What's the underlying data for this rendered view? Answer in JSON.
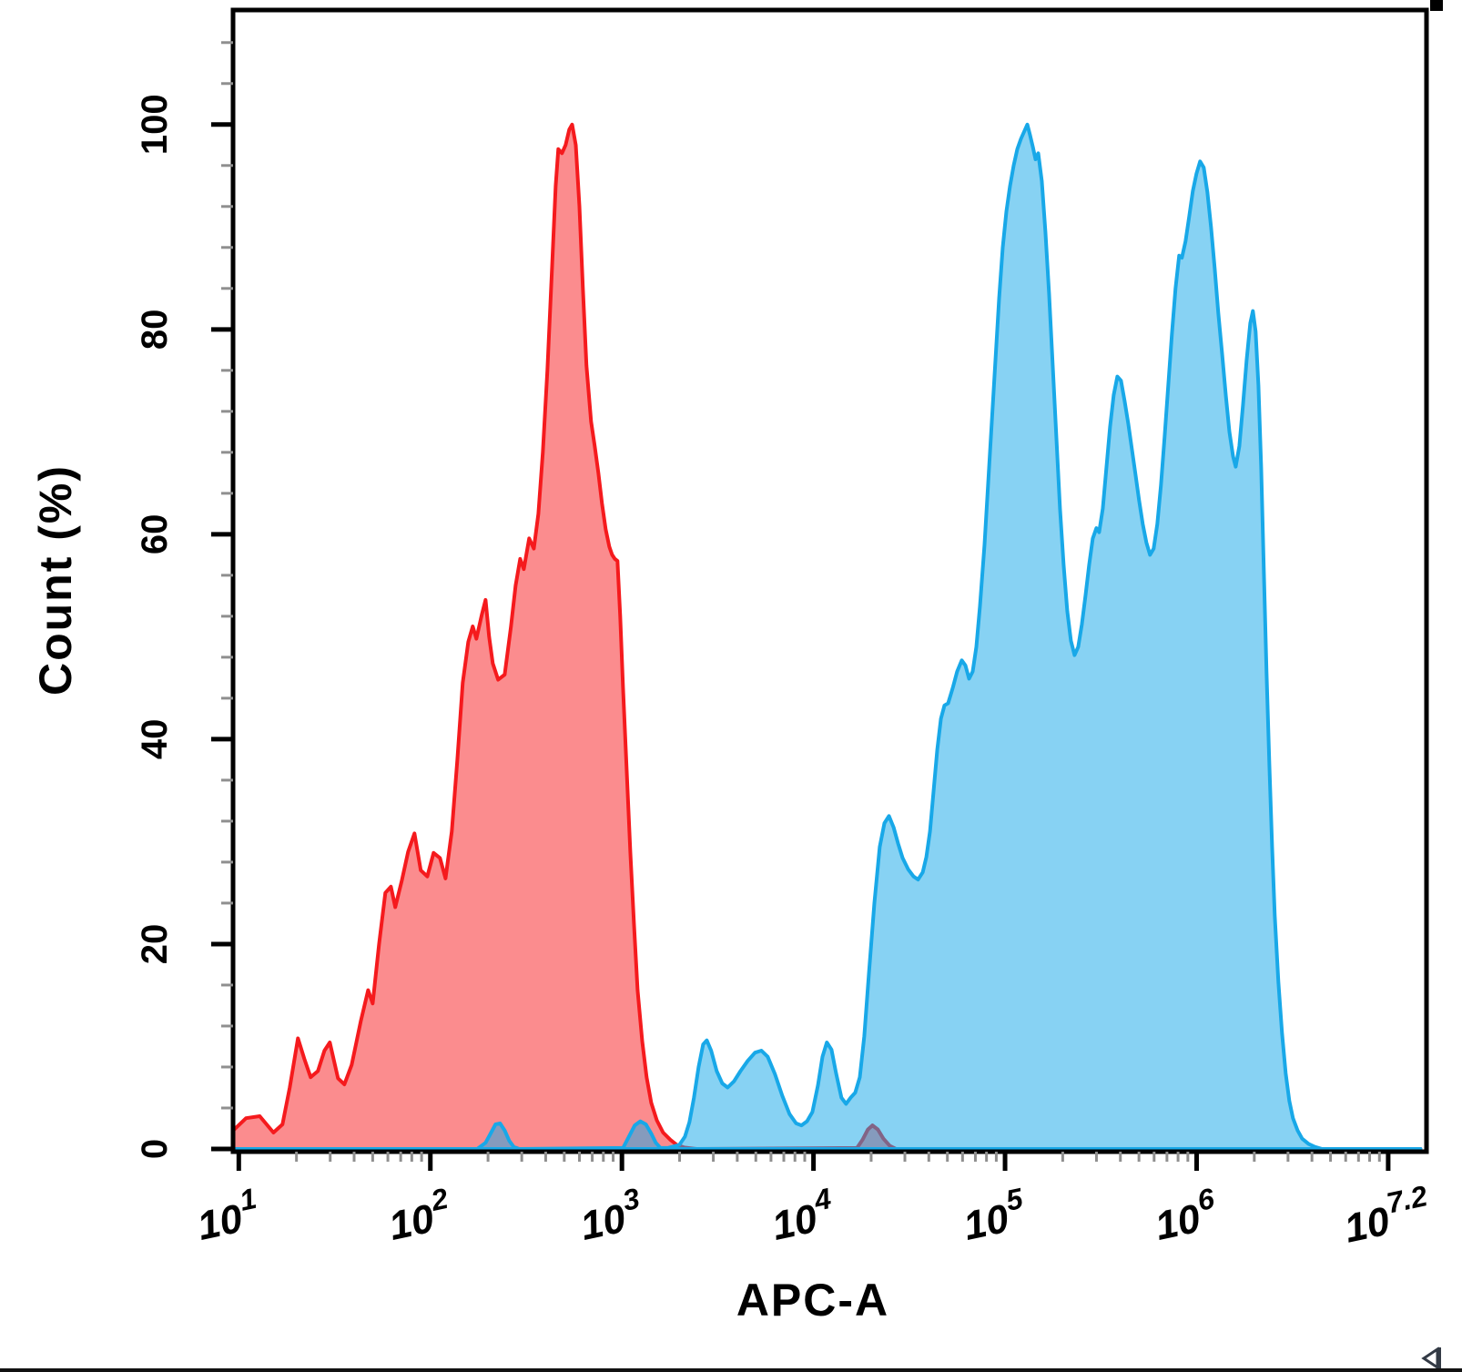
{
  "figure": {
    "ylabel": "Count  (%)",
    "xlabel": "APC-A"
  },
  "chart_data": {
    "type": "area",
    "subtype": "flow-cytometry-histogram",
    "x_scale": "log10",
    "xlabel": "APC-A",
    "ylabel": "Count (%)",
    "grid": false,
    "legend": "none",
    "xlim_log10": [
      0.97,
      7.2
    ],
    "ylim_pct": [
      0,
      111
    ],
    "y_major_ticks": [
      0,
      20,
      40,
      60,
      80,
      100
    ],
    "y_minor_step": 4,
    "y_minor_max": 108,
    "x_major_tick_logs": [
      1,
      2,
      3,
      4,
      5,
      6,
      7
    ],
    "x_tick_labels": [
      {
        "log": 1.0,
        "base": "10",
        "sup": "1"
      },
      {
        "log": 2.0,
        "base": "10",
        "sup": "2"
      },
      {
        "log": 3.0,
        "base": "10",
        "sup": "3"
      },
      {
        "log": 4.0,
        "base": "10",
        "sup": "4"
      },
      {
        "log": 5.0,
        "base": "10",
        "sup": "5"
      },
      {
        "log": 6.0,
        "base": "10",
        "sup": "6"
      },
      {
        "log": 7.05,
        "base": "10",
        "sup": "7.2"
      }
    ],
    "series": [
      {
        "name": "red-population",
        "stroke": "#f51a1d",
        "fill": "rgba(247,26,30,0.5)",
        "stroke_width": 4,
        "points": [
          [
            0.971,
            1.8
          ],
          [
            1.038,
            3.0
          ],
          [
            1.109,
            3.2
          ],
          [
            1.181,
            1.6
          ],
          [
            1.228,
            2.4
          ],
          [
            1.266,
            6.0
          ],
          [
            1.309,
            10.8
          ],
          [
            1.342,
            8.8
          ],
          [
            1.375,
            7.0
          ],
          [
            1.413,
            7.6
          ],
          [
            1.447,
            9.6
          ],
          [
            1.475,
            10.4
          ],
          [
            1.518,
            6.9
          ],
          [
            1.551,
            6.3
          ],
          [
            1.589,
            8.2
          ],
          [
            1.637,
            12.5
          ],
          [
            1.675,
            15.5
          ],
          [
            1.699,
            14.2
          ],
          [
            1.732,
            20.0
          ],
          [
            1.765,
            25.0
          ],
          [
            1.794,
            25.6
          ],
          [
            1.817,
            23.6
          ],
          [
            1.851,
            26.2
          ],
          [
            1.884,
            29.0
          ],
          [
            1.917,
            30.8
          ],
          [
            1.95,
            27.2
          ],
          [
            1.984,
            26.6
          ],
          [
            2.017,
            28.9
          ],
          [
            2.05,
            28.4
          ],
          [
            2.079,
            26.4
          ],
          [
            2.112,
            31.0
          ],
          [
            2.141,
            38.0
          ],
          [
            2.169,
            45.5
          ],
          [
            2.198,
            49.5
          ],
          [
            2.221,
            51.0
          ],
          [
            2.24,
            49.8
          ],
          [
            2.269,
            52.2
          ],
          [
            2.288,
            53.6
          ],
          [
            2.307,
            50.0
          ],
          [
            2.326,
            47.4
          ],
          [
            2.354,
            45.8
          ],
          [
            2.388,
            46.3
          ],
          [
            2.421,
            51.0
          ],
          [
            2.445,
            55.0
          ],
          [
            2.469,
            57.6
          ],
          [
            2.488,
            56.6
          ],
          [
            2.516,
            59.6
          ],
          [
            2.54,
            58.6
          ],
          [
            2.564,
            62.0
          ],
          [
            2.587,
            68.0
          ],
          [
            2.611,
            76.0
          ],
          [
            2.635,
            86.0
          ],
          [
            2.654,
            94.0
          ],
          [
            2.668,
            97.6
          ],
          [
            2.687,
            97.2
          ],
          [
            2.706,
            98.0
          ],
          [
            2.725,
            99.5
          ],
          [
            2.74,
            100.0
          ],
          [
            2.759,
            98.0
          ],
          [
            2.778,
            92.0
          ],
          [
            2.796,
            84.0
          ],
          [
            2.815,
            76.5
          ],
          [
            2.839,
            71.0
          ],
          [
            2.858,
            68.6
          ],
          [
            2.877,
            66.0
          ],
          [
            2.896,
            63.0
          ],
          [
            2.915,
            60.5
          ],
          [
            2.934,
            58.8
          ],
          [
            2.949,
            58.0
          ],
          [
            2.963,
            57.6
          ],
          [
            2.977,
            57.4
          ],
          [
            2.991,
            52.0
          ],
          [
            3.006,
            45.0
          ],
          [
            3.025,
            37.0
          ],
          [
            3.044,
            29.0
          ],
          [
            3.063,
            22.0
          ],
          [
            3.082,
            15.5
          ],
          [
            3.106,
            10.5
          ],
          [
            3.129,
            7.0
          ],
          [
            3.153,
            4.5
          ],
          [
            3.182,
            2.8
          ],
          [
            3.215,
            1.6
          ],
          [
            3.253,
            0.9
          ],
          [
            3.286,
            0.4
          ],
          [
            3.324,
            0.15
          ],
          [
            3.39,
            0
          ],
          [
            4.227,
            0.1
          ],
          [
            4.256,
            0.9
          ],
          [
            4.284,
            1.9
          ],
          [
            4.308,
            2.3
          ],
          [
            4.336,
            1.9
          ],
          [
            4.365,
            1.0
          ],
          [
            4.398,
            0.3
          ],
          [
            4.431,
            0
          ],
          [
            7.169,
            0
          ]
        ]
      },
      {
        "name": "blue-population",
        "stroke": "#18a8e8",
        "fill": "rgba(24,168,232,0.52)",
        "stroke_width": 4,
        "points": [
          [
            0.971,
            0
          ],
          [
            2.245,
            0
          ],
          [
            2.288,
            0.6
          ],
          [
            2.317,
            1.6
          ],
          [
            2.34,
            2.4
          ],
          [
            2.364,
            2.5
          ],
          [
            2.388,
            1.8
          ],
          [
            2.412,
            0.8
          ],
          [
            2.435,
            0.2
          ],
          [
            2.464,
            0
          ],
          [
            3.006,
            0.1
          ],
          [
            3.034,
            1.1
          ],
          [
            3.067,
            2.3
          ],
          [
            3.096,
            2.7
          ],
          [
            3.125,
            2.4
          ],
          [
            3.153,
            1.5
          ],
          [
            3.177,
            0.6
          ],
          [
            3.201,
            0.1
          ],
          [
            3.239,
            0.1
          ],
          [
            3.3,
            0.4
          ],
          [
            3.329,
            1.2
          ],
          [
            3.352,
            2.6
          ],
          [
            3.376,
            5.0
          ],
          [
            3.4,
            8.0
          ],
          [
            3.424,
            10.2
          ],
          [
            3.443,
            10.6
          ],
          [
            3.466,
            9.6
          ],
          [
            3.495,
            7.6
          ],
          [
            3.524,
            6.4
          ],
          [
            3.552,
            6.0
          ],
          [
            3.585,
            6.6
          ],
          [
            3.619,
            7.6
          ],
          [
            3.657,
            8.6
          ],
          [
            3.695,
            9.4
          ],
          [
            3.728,
            9.6
          ],
          [
            3.761,
            9.0
          ],
          [
            3.799,
            7.3
          ],
          [
            3.837,
            5.2
          ],
          [
            3.875,
            3.4
          ],
          [
            3.909,
            2.5
          ],
          [
            3.937,
            2.3
          ],
          [
            3.966,
            2.7
          ],
          [
            3.994,
            3.6
          ],
          [
            4.023,
            6.2
          ],
          [
            4.047,
            9.0
          ],
          [
            4.07,
            10.4
          ],
          [
            4.094,
            9.7
          ],
          [
            4.118,
            7.4
          ],
          [
            4.146,
            5.0
          ],
          [
            4.17,
            4.4
          ],
          [
            4.194,
            5.0
          ],
          [
            4.218,
            5.5
          ],
          [
            4.242,
            7.0
          ],
          [
            4.265,
            11.0
          ],
          [
            4.289,
            17.0
          ],
          [
            4.318,
            24.0
          ],
          [
            4.346,
            29.5
          ],
          [
            4.37,
            31.8
          ],
          [
            4.394,
            32.5
          ],
          [
            4.418,
            31.4
          ],
          [
            4.442,
            29.8
          ],
          [
            4.465,
            28.4
          ],
          [
            4.494,
            27.3
          ],
          [
            4.522,
            26.6
          ],
          [
            4.546,
            26.3
          ],
          [
            4.57,
            27.0
          ],
          [
            4.589,
            28.5
          ],
          [
            4.608,
            31.0
          ],
          [
            4.627,
            35.0
          ],
          [
            4.646,
            39.0
          ],
          [
            4.665,
            42.0
          ],
          [
            4.684,
            43.3
          ],
          [
            4.703,
            43.5
          ],
          [
            4.727,
            45.0
          ],
          [
            4.75,
            46.6
          ],
          [
            4.774,
            47.7
          ],
          [
            4.793,
            47.2
          ],
          [
            4.812,
            45.9
          ],
          [
            4.831,
            46.6
          ],
          [
            4.85,
            49.0
          ],
          [
            4.869,
            53.0
          ],
          [
            4.893,
            59.0
          ],
          [
            4.912,
            65.0
          ],
          [
            4.931,
            71.0
          ],
          [
            4.95,
            77.0
          ],
          [
            4.969,
            83.0
          ],
          [
            4.988,
            88.0
          ],
          [
            5.007,
            91.5
          ],
          [
            5.026,
            94.0
          ],
          [
            5.045,
            96.0
          ],
          [
            5.064,
            97.6
          ],
          [
            5.083,
            98.6
          ],
          [
            5.102,
            99.4
          ],
          [
            5.116,
            100.0
          ],
          [
            5.13,
            99.0
          ],
          [
            5.145,
            97.8
          ],
          [
            5.159,
            96.6
          ],
          [
            5.173,
            97.2
          ],
          [
            5.192,
            94.5
          ],
          [
            5.211,
            89.5
          ],
          [
            5.23,
            83.5
          ],
          [
            5.249,
            76.5
          ],
          [
            5.268,
            69.5
          ],
          [
            5.287,
            62.5
          ],
          [
            5.306,
            57.0
          ],
          [
            5.325,
            52.5
          ],
          [
            5.344,
            49.6
          ],
          [
            5.363,
            48.2
          ],
          [
            5.382,
            49.0
          ],
          [
            5.401,
            51.2
          ],
          [
            5.42,
            54.0
          ],
          [
            5.439,
            57.0
          ],
          [
            5.458,
            59.6
          ],
          [
            5.477,
            60.6
          ],
          [
            5.491,
            60.2
          ],
          [
            5.51,
            62.5
          ],
          [
            5.529,
            66.5
          ],
          [
            5.548,
            70.5
          ],
          [
            5.567,
            73.6
          ],
          [
            5.586,
            75.4
          ],
          [
            5.605,
            75.0
          ],
          [
            5.624,
            73.0
          ],
          [
            5.643,
            70.8
          ],
          [
            5.662,
            68.3
          ],
          [
            5.681,
            65.8
          ],
          [
            5.7,
            63.3
          ],
          [
            5.719,
            61.0
          ],
          [
            5.738,
            59.2
          ],
          [
            5.757,
            58.0
          ],
          [
            5.776,
            58.6
          ],
          [
            5.795,
            61.0
          ],
          [
            5.814,
            64.8
          ],
          [
            5.833,
            69.5
          ],
          [
            5.852,
            74.5
          ],
          [
            5.871,
            79.5
          ],
          [
            5.89,
            84.0
          ],
          [
            5.909,
            87.2
          ],
          [
            5.923,
            87.0
          ],
          [
            5.942,
            88.6
          ],
          [
            5.961,
            91.0
          ],
          [
            5.98,
            93.5
          ],
          [
            5.999,
            95.2
          ],
          [
            6.018,
            96.4
          ],
          [
            6.037,
            95.8
          ],
          [
            6.056,
            93.4
          ],
          [
            6.075,
            90.0
          ],
          [
            6.094,
            86.0
          ],
          [
            6.113,
            81.6
          ],
          [
            6.133,
            77.6
          ],
          [
            6.152,
            73.6
          ],
          [
            6.171,
            70.0
          ],
          [
            6.19,
            67.6
          ],
          [
            6.204,
            66.6
          ],
          [
            6.223,
            68.6
          ],
          [
            6.242,
            72.6
          ],
          [
            6.261,
            77.0
          ],
          [
            6.28,
            80.6
          ],
          [
            6.294,
            81.8
          ],
          [
            6.308,
            79.8
          ],
          [
            6.323,
            74.5
          ],
          [
            6.337,
            66.5
          ],
          [
            6.351,
            56.5
          ],
          [
            6.365,
            46.5
          ],
          [
            6.38,
            37.5
          ],
          [
            6.394,
            29.5
          ],
          [
            6.408,
            22.8
          ],
          [
            6.427,
            16.3
          ],
          [
            6.446,
            11.3
          ],
          [
            6.465,
            7.4
          ],
          [
            6.484,
            4.7
          ],
          [
            6.503,
            3.0
          ],
          [
            6.527,
            1.8
          ],
          [
            6.551,
            1.0
          ],
          [
            6.584,
            0.5
          ],
          [
            6.617,
            0.2
          ],
          [
            6.655,
            0
          ],
          [
            7.169,
            0
          ]
        ]
      }
    ]
  }
}
